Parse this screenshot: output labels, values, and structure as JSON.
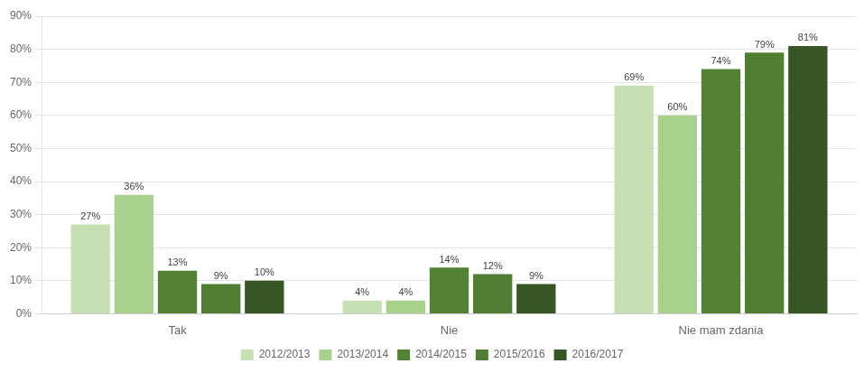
{
  "chart_data": {
    "type": "bar",
    "categories": [
      "Tak",
      "Nie",
      "Nie mam zdania"
    ],
    "series": [
      {
        "name": "2012/2013",
        "color": "#c6e0b4",
        "values": [
          27,
          4,
          69
        ],
        "value_labels": [
          "27%",
          "4%",
          "69%"
        ]
      },
      {
        "name": "2013/2014",
        "color": "#a9d18e",
        "values": [
          36,
          4,
          60
        ],
        "value_labels": [
          "36%",
          "4%",
          "60%"
        ]
      },
      {
        "name": "2014/2015",
        "color": "#548235",
        "values": [
          13,
          14,
          74
        ],
        "value_labels": [
          "13%",
          "14%",
          "74%"
        ]
      },
      {
        "name": "2015/2016",
        "color": "#507e32",
        "values": [
          9,
          12,
          79
        ],
        "value_labels": [
          "9%",
          "12%",
          "79%"
        ]
      },
      {
        "name": "2016/2017",
        "color": "#375623",
        "values": [
          10,
          9,
          81
        ],
        "value_labels": [
          "10%",
          "9%",
          "81%"
        ]
      }
    ],
    "ylim": [
      0,
      90
    ],
    "yticks": [
      {
        "value": 0,
        "label": "0%"
      },
      {
        "value": 10,
        "label": "10%"
      },
      {
        "value": 20,
        "label": "20%"
      },
      {
        "value": 30,
        "label": "30%"
      },
      {
        "value": 40,
        "label": "40%"
      },
      {
        "value": 50,
        "label": "50%"
      },
      {
        "value": 60,
        "label": "60%"
      },
      {
        "value": 70,
        "label": "70%"
      },
      {
        "value": 80,
        "label": "80%"
      },
      {
        "value": 90,
        "label": "90%"
      }
    ],
    "grid": true,
    "legend": "bottom",
    "data_labels": true
  }
}
